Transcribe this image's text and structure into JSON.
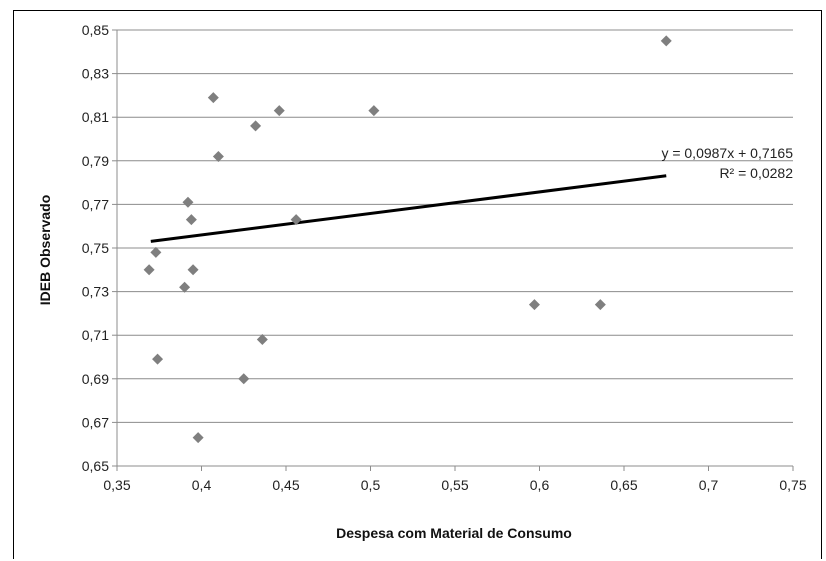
{
  "chart_data": {
    "type": "scatter",
    "title": "",
    "xlabel": "Despesa com Material de Consumo",
    "ylabel": "IDEB Observado",
    "xlim": [
      0.35,
      0.75
    ],
    "ylim": [
      0.65,
      0.85
    ],
    "x_ticks": [
      "0,35",
      "0,4",
      "0,45",
      "0,5",
      "0,55",
      "0,6",
      "0,65",
      "0,7",
      "0,75"
    ],
    "y_ticks": [
      "0,65",
      "0,67",
      "0,69",
      "0,71",
      "0,73",
      "0,75",
      "0,77",
      "0,79",
      "0,81",
      "0,83",
      "0,85"
    ],
    "grid": "horizontal",
    "marker_color": "#7f7f7f",
    "trendline_color": "#000000",
    "points": [
      {
        "x": 0.369,
        "y": 0.74
      },
      {
        "x": 0.373,
        "y": 0.748
      },
      {
        "x": 0.374,
        "y": 0.699
      },
      {
        "x": 0.39,
        "y": 0.732
      },
      {
        "x": 0.392,
        "y": 0.771
      },
      {
        "x": 0.394,
        "y": 0.763
      },
      {
        "x": 0.395,
        "y": 0.74
      },
      {
        "x": 0.398,
        "y": 0.663
      },
      {
        "x": 0.407,
        "y": 0.819
      },
      {
        "x": 0.41,
        "y": 0.792
      },
      {
        "x": 0.425,
        "y": 0.69
      },
      {
        "x": 0.432,
        "y": 0.806
      },
      {
        "x": 0.436,
        "y": 0.708
      },
      {
        "x": 0.446,
        "y": 0.813
      },
      {
        "x": 0.456,
        "y": 0.763
      },
      {
        "x": 0.502,
        "y": 0.813
      },
      {
        "x": 0.597,
        "y": 0.724
      },
      {
        "x": 0.636,
        "y": 0.724
      },
      {
        "x": 0.675,
        "y": 0.845
      }
    ],
    "trendline": {
      "slope": 0.0987,
      "intercept": 0.7165,
      "x_start": 0.37,
      "x_end": 0.675
    },
    "equation_text": "y = 0,0987x + 0,7165",
    "r2_text": "R² = 0,0282"
  }
}
